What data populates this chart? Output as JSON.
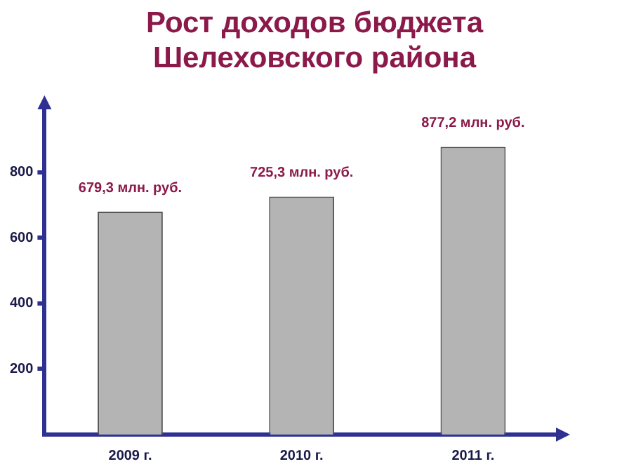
{
  "chart_data": {
    "type": "bar",
    "title": "Рост доходов бюджета Шелеховского района",
    "categories": [
      "2009 г.",
      "2010 г.",
      "2011 г."
    ],
    "values": [
      679.3,
      725.3,
      877.2
    ],
    "value_labels": [
      "679,3 млн. руб.",
      "725,3 млн. руб.",
      "877,2 млн. руб."
    ],
    "color": "#b4b4b4",
    "ylim": [
      0,
      1000
    ],
    "yticks": [
      200,
      400,
      600,
      800
    ],
    "grid": false,
    "legend": false
  }
}
